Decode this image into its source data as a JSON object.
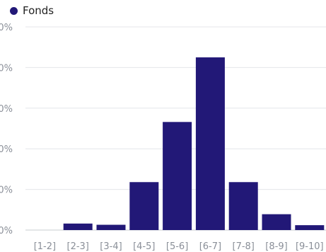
{
  "chart_data": {
    "type": "bar",
    "categories": [
      "[1-2]",
      "[2-3]",
      "[3-4]",
      "[4-5]",
      "[5-6]",
      "[6-7]",
      "[7-8]",
      "[8-9]",
      "[9-10]"
    ],
    "series": [
      {
        "name": "Fonds",
        "color": "#221877",
        "values": [
          0,
          1.6,
          1.3,
          11.8,
          26.6,
          42.5,
          11.8,
          3.9,
          1.2
        ]
      }
    ],
    "y_tick_labels": [
      "0%",
      "0%",
      "0%",
      "0%",
      "0%",
      "0%"
    ],
    "ylim": [
      0,
      50
    ],
    "grid": true,
    "legend": "top-left"
  }
}
